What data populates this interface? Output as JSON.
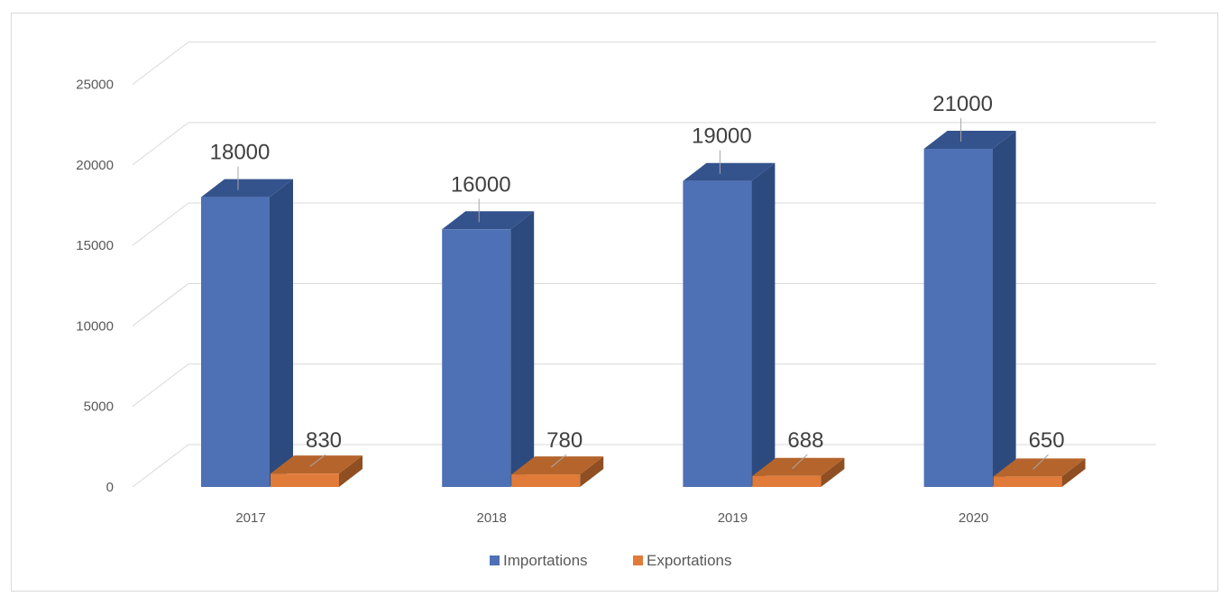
{
  "chart_data": {
    "type": "bar",
    "categories": [
      "2017",
      "2018",
      "2019",
      "2020"
    ],
    "series": [
      {
        "name": "Importations",
        "values": [
          18000,
          16000,
          19000,
          21000
        ],
        "color": "#4e70b4",
        "side_color": "#2d4a7e",
        "top_color": "#34538d"
      },
      {
        "name": "Exportations",
        "values": [
          830,
          780,
          688,
          650
        ],
        "color": "#e07b39",
        "side_color": "#8f4f22",
        "top_color": "#b5652c"
      }
    ],
    "yticks": [
      "0",
      "5000",
      "10000",
      "15000",
      "20000",
      "25000"
    ],
    "ylim": [
      0,
      25000
    ],
    "legend_position": "bottom",
    "grid": true
  }
}
